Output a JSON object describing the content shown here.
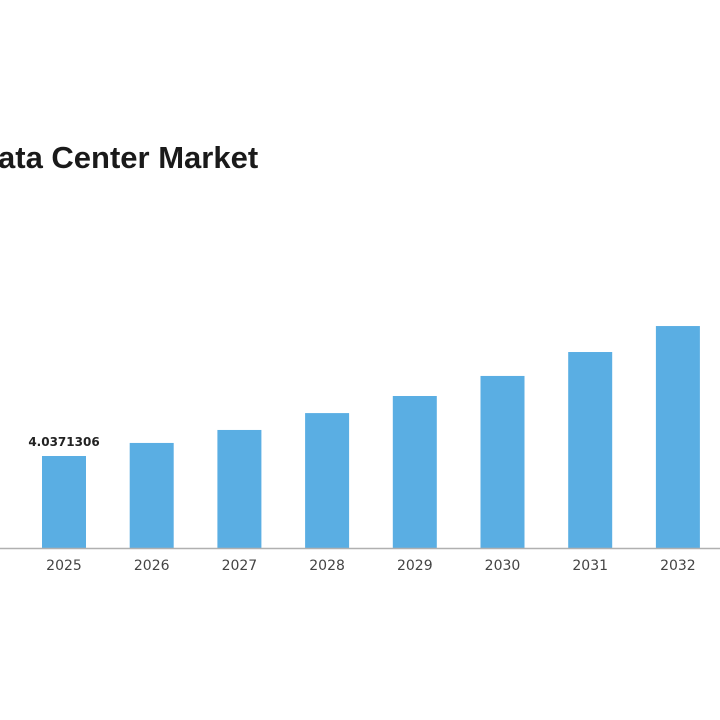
{
  "chart_data": {
    "type": "bar",
    "title": "ata Center Market",
    "categories": [
      "2025",
      "2026",
      "2027",
      "2028",
      "2029",
      "2030",
      "2031",
      "2032"
    ],
    "values": [
      4.0371306,
      4.61,
      5.18,
      5.92,
      6.67,
      7.55,
      8.6,
      9.74
    ],
    "data_labels": {
      "0": "4.0371306"
    },
    "xlabel": "",
    "ylabel": "",
    "ylim": [
      0,
      12
    ],
    "grid": false,
    "bar_color": "#5aaee3",
    "axis_color": "#b0b0b0"
  }
}
